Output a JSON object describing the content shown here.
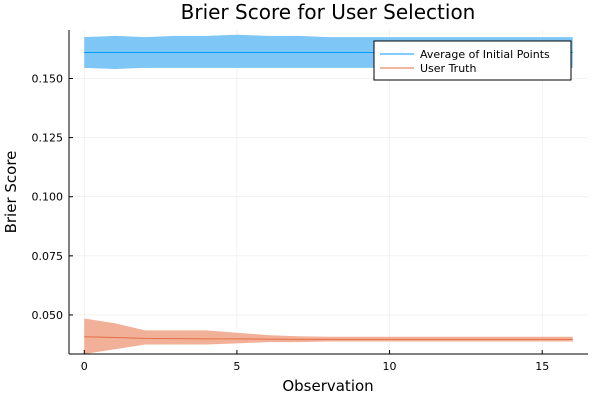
{
  "chart_data": {
    "type": "line",
    "title": "Brier Score for User Selection",
    "xlabel": "Observation",
    "ylabel": "Brier Score",
    "xlim": [
      -0.5,
      16.5
    ],
    "ylim": [
      0.0335,
      0.1705
    ],
    "x_ticks": [
      0,
      5,
      10,
      15
    ],
    "y_ticks": [
      0.05,
      0.075,
      0.1,
      0.125,
      0.15
    ],
    "x_tick_labels": [
      "0",
      "5",
      "10",
      "15"
    ],
    "y_tick_labels": [
      "0.050",
      "0.075",
      "0.100",
      "0.125",
      "0.150"
    ],
    "grid": true,
    "legend_position": "top-right",
    "series": [
      {
        "name": "Average of Initial Points",
        "color": "#009AFA",
        "band_color": "#7EC6F5",
        "x": [
          0,
          1,
          2,
          3,
          4,
          5,
          6,
          7,
          8,
          9,
          10,
          11,
          12,
          13,
          14,
          15,
          16
        ],
        "values": [
          0.161,
          0.161,
          0.161,
          0.161,
          0.161,
          0.161,
          0.161,
          0.161,
          0.161,
          0.161,
          0.161,
          0.161,
          0.161,
          0.161,
          0.161,
          0.161,
          0.161
        ],
        "lower": [
          0.1545,
          0.154,
          0.1545,
          0.1545,
          0.1545,
          0.1545,
          0.1545,
          0.1545,
          0.1545,
          0.1545,
          0.1545,
          0.1545,
          0.1545,
          0.1545,
          0.1545,
          0.1545,
          0.1545
        ],
        "upper": [
          0.1675,
          0.168,
          0.1675,
          0.168,
          0.168,
          0.1685,
          0.168,
          0.168,
          0.1675,
          0.1675,
          0.1675,
          0.1675,
          0.1675,
          0.1675,
          0.1675,
          0.1675,
          0.1675
        ]
      },
      {
        "name": "User Truth",
        "color": "#E26F46",
        "band_color": "#F2B098",
        "x": [
          0,
          1,
          2,
          3,
          4,
          5,
          6,
          7,
          8,
          9,
          10,
          11,
          12,
          13,
          14,
          15,
          16
        ],
        "values": [
          0.0408,
          0.0405,
          0.0401,
          0.04,
          0.0399,
          0.0399,
          0.0398,
          0.0397,
          0.0397,
          0.0397,
          0.0397,
          0.0397,
          0.0397,
          0.0397,
          0.0397,
          0.0397,
          0.0397
        ],
        "lower": [
          0.0335,
          0.0355,
          0.0375,
          0.0375,
          0.0375,
          0.038,
          0.0385,
          0.0385,
          0.0388,
          0.0388,
          0.0388,
          0.0388,
          0.0388,
          0.0388,
          0.0388,
          0.0388,
          0.0388
        ],
        "upper": [
          0.0485,
          0.0465,
          0.0435,
          0.0435,
          0.0435,
          0.0425,
          0.0415,
          0.041,
          0.0408,
          0.0408,
          0.0408,
          0.0408,
          0.0408,
          0.0408,
          0.0408,
          0.0408,
          0.0408
        ]
      }
    ]
  }
}
